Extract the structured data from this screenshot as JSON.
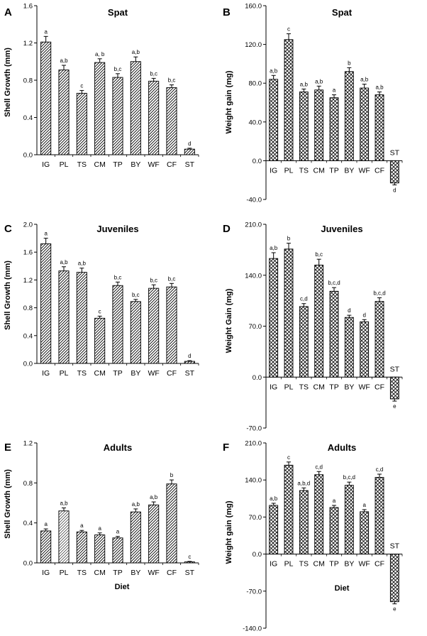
{
  "colors": {
    "ink": "#000000",
    "background": "#ffffff"
  },
  "chart_data": [
    {
      "panel": "A",
      "type": "bar",
      "title": "Spat",
      "ylabel": "Shell Growth (mm)",
      "xlabel": "",
      "ylim": [
        0,
        1.6
      ],
      "yticks": [
        "0.0",
        "0.4",
        "0.8",
        "1.2",
        "1.6"
      ],
      "categories": [
        "IG",
        "PL",
        "TS",
        "CM",
        "TP",
        "BY",
        "WF",
        "CF",
        "ST"
      ],
      "values": [
        1.21,
        0.91,
        0.66,
        0.99,
        0.83,
        1.0,
        0.79,
        0.72,
        0.06
      ],
      "errors": [
        0.06,
        0.05,
        0.03,
        0.04,
        0.04,
        0.05,
        0.03,
        0.03,
        0.01
      ],
      "letters": [
        "a",
        "a,b",
        "c",
        "a, b",
        "b,c",
        "a,b",
        "b,c",
        "b,c",
        "d"
      ],
      "pattern": "diag"
    },
    {
      "panel": "B",
      "type": "bar",
      "title": "Spat",
      "ylabel": "Weight gain (mg)",
      "xlabel": "",
      "ylim": [
        -40,
        160
      ],
      "yticks": [
        "-40.0",
        "0.0",
        "40.0",
        "80.0",
        "120.0",
        "160.0"
      ],
      "categories": [
        "IG",
        "PL",
        "TS",
        "CM",
        "TP",
        "BY",
        "WF",
        "CF",
        "ST"
      ],
      "values": [
        84,
        125,
        71,
        73,
        65,
        92,
        75,
        68,
        -23
      ],
      "errors": [
        4,
        6,
        3,
        4,
        3,
        4,
        4,
        3,
        2
      ],
      "letters": [
        "a,b",
        "c",
        "a,b",
        "a,b",
        "a",
        "b",
        "a,b",
        "a,b",
        "d"
      ],
      "pattern": "cross"
    },
    {
      "panel": "C",
      "type": "bar",
      "title": "Juveniles",
      "ylabel": "Shell Growth (mm)",
      "xlabel": "",
      "ylim": [
        0,
        2.0
      ],
      "yticks": [
        "0.0",
        "0.4",
        "0.8",
        "1.2",
        "1.6",
        "2.0"
      ],
      "categories": [
        "IG",
        "PL",
        "TS",
        "CM",
        "TP",
        "BY",
        "WF",
        "CF",
        "ST"
      ],
      "values": [
        1.72,
        1.33,
        1.31,
        0.65,
        1.12,
        0.89,
        1.08,
        1.1,
        0.03
      ],
      "errors": [
        0.08,
        0.06,
        0.06,
        0.03,
        0.05,
        0.03,
        0.05,
        0.05,
        0.01
      ],
      "letters": [
        "a",
        "a,b",
        "a,b",
        "c",
        "b,c",
        "b,c",
        "b,c",
        "b,c",
        "d"
      ],
      "pattern": "diag"
    },
    {
      "panel": "D",
      "type": "bar",
      "title": "Juveniles",
      "ylabel": "Weight Gain (mg)",
      "xlabel": "",
      "ylim": [
        -70,
        210
      ],
      "yticks": [
        "-70.0",
        "0.0",
        "70.0",
        "140.0",
        "210.0"
      ],
      "categories": [
        "IG",
        "PL",
        "TS",
        "CM",
        "TP",
        "BY",
        "WF",
        "CF",
        "ST"
      ],
      "values": [
        163,
        176,
        97,
        154,
        118,
        82,
        76,
        104,
        -30
      ],
      "errors": [
        8,
        8,
        4,
        8,
        5,
        3,
        3,
        5,
        3
      ],
      "letters": [
        "a,b",
        "b",
        "c,d",
        "b,c",
        "b,c,d",
        "d",
        "d",
        "b,c,d",
        "e"
      ],
      "pattern": "cross"
    },
    {
      "panel": "E",
      "type": "bar",
      "title": "Adults",
      "ylabel": "Shell Growth (mm)",
      "xlabel": "Diet",
      "ylim": [
        0,
        1.2
      ],
      "yticks": [
        "0.0",
        "0.4",
        "0.8",
        "1.2"
      ],
      "categories": [
        "IG",
        "PL",
        "TS",
        "CM",
        "TP",
        "BY",
        "WF",
        "CF",
        "ST"
      ],
      "values": [
        0.32,
        0.52,
        0.31,
        0.28,
        0.25,
        0.51,
        0.58,
        0.79,
        0.01
      ],
      "errors": [
        0.02,
        0.03,
        0.015,
        0.02,
        0.015,
        0.03,
        0.03,
        0.04,
        0.005
      ],
      "letters": [
        "a",
        "a,b",
        "a",
        "a",
        "a",
        "a,b",
        "a,b",
        "b",
        "c"
      ],
      "pattern": "diag"
    },
    {
      "panel": "F",
      "type": "bar",
      "title": "Adults",
      "ylabel": "Weight gain (mg)",
      "xlabel": "Diet",
      "ylim": [
        -140,
        210
      ],
      "yticks": [
        "-140.0",
        "-70.0",
        "0.0",
        "70.0",
        "140.0",
        "210.0"
      ],
      "categories": [
        "IG",
        "PL",
        "TS",
        "CM",
        "TP",
        "BY",
        "WF",
        "CF",
        "ST"
      ],
      "values": [
        92,
        168,
        120,
        150,
        88,
        130,
        80,
        145,
        -90
      ],
      "errors": [
        4,
        6,
        5,
        6,
        4,
        6,
        4,
        6,
        4
      ],
      "letters": [
        "a,b",
        "c",
        "a,b,d",
        "c,d",
        "a",
        "b,c,d",
        "a",
        "c,d",
        "e"
      ],
      "pattern": "cross"
    }
  ]
}
